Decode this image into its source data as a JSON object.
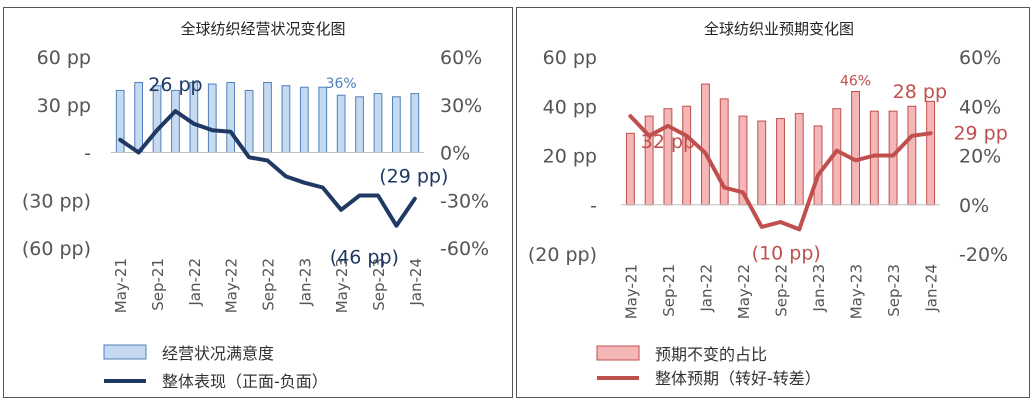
{
  "charts": [
    {
      "id": "left",
      "bar_color": "#c5d9f1",
      "bar_stroke": "#4f81bd",
      "line_color": "#1f3864",
      "chart_data": {
        "type": "bar+line",
        "title": "全球纺织经营状况变化图",
        "categories": [
          "May-21",
          "Jul-21",
          "Sep-21",
          "Nov-21",
          "Jan-22",
          "Mar-22",
          "May-22",
          "Jul-22",
          "Sep-22",
          "Nov-22",
          "Jan-23",
          "Mar-23",
          "May-23",
          "Jul-23",
          "Sep-23",
          "Nov-23",
          "Jan-24"
        ],
        "x_tick_labels": [
          "May-21",
          "Sep-21",
          "Jan-22",
          "May-22",
          "Sep-22",
          "Jan-23",
          "May-23",
          "Sep-23",
          "Jan-24"
        ],
        "left_axis": {
          "ticks": [
            60,
            30,
            0,
            -30,
            -60
          ],
          "tick_labels": [
            "60 pp",
            "30 pp",
            "-",
            "(30 pp)",
            "(60 pp)"
          ],
          "range": [
            -60,
            60
          ]
        },
        "right_axis": {
          "ticks": [
            60,
            30,
            0,
            -30,
            -60
          ],
          "tick_labels": [
            "60%",
            "30%",
            "0%",
            "-30%",
            "-60%"
          ],
          "range": [
            -60,
            60
          ]
        },
        "series": [
          {
            "name": "经营状况满意度",
            "kind": "bar",
            "axis": "right",
            "unit": "%",
            "values": [
              39,
              44,
              42,
              39,
              44,
              43,
              44,
              39,
              44,
              42,
              41,
              41,
              36,
              35,
              37,
              35,
              37
            ]
          },
          {
            "name": "整体表现（正面-负面）",
            "kind": "line",
            "axis": "left",
            "unit": "pp",
            "values": [
              8,
              0,
              14,
              26,
              18,
              14,
              13,
              -3,
              -5,
              -15,
              -19,
              -22,
              -36,
              -27,
              -27,
              -46,
              -29
            ]
          }
        ],
        "annotations": [
          {
            "text": "26 pp",
            "series": 1,
            "index": 3
          },
          {
            "text": "36%",
            "series": 0,
            "index": 12
          },
          {
            "text": "(29 pp)",
            "series": 1,
            "index": 16
          },
          {
            "text": "(46 pp)",
            "series": 1,
            "index": 15
          }
        ],
        "legend": [
          "经营状况满意度",
          "整体表现（正面-负面）"
        ],
        "legend_position": "bottom"
      }
    },
    {
      "id": "right",
      "bar_color": "#f4b6b6",
      "bar_stroke": "#c0504d",
      "line_color": "#c0504d",
      "chart_data": {
        "type": "bar+line",
        "title": "全球纺织业预期变化图",
        "categories": [
          "May-21",
          "Jul-21",
          "Sep-21",
          "Nov-21",
          "Jan-22",
          "Mar-22",
          "May-22",
          "Jul-22",
          "Sep-22",
          "Nov-22",
          "Jan-23",
          "Mar-23",
          "May-23",
          "Jul-23",
          "Sep-23",
          "Nov-23",
          "Jan-24"
        ],
        "x_tick_labels": [
          "May-21",
          "Sep-21",
          "Jan-22",
          "May-22",
          "Sep-22",
          "Jan-23",
          "May-23",
          "Sep-23",
          "Jan-24"
        ],
        "left_axis": {
          "ticks": [
            60,
            40,
            20,
            0,
            -20
          ],
          "tick_labels": [
            "60 pp",
            "40 pp",
            "20 pp",
            "-",
            "(20 pp)"
          ],
          "range": [
            -20,
            60
          ]
        },
        "right_axis": {
          "ticks": [
            60,
            40,
            20,
            0,
            -20
          ],
          "tick_labels": [
            "60%",
            "40%",
            "20%",
            "0%",
            "-20%"
          ],
          "range": [
            -20,
            60
          ]
        },
        "series": [
          {
            "name": "预期不变的占比",
            "kind": "bar",
            "axis": "right",
            "unit": "%",
            "values": [
              29,
              36,
              39,
              40,
              49,
              43,
              36,
              34,
              35,
              37,
              32,
              39,
              46,
              38,
              38,
              40,
              42
            ]
          },
          {
            "name": "整体预期（转好-转差）",
            "kind": "line",
            "axis": "left",
            "unit": "pp",
            "values": [
              36,
              28,
              32,
              28,
              21,
              7,
              5,
              -9,
              -7,
              -10,
              12,
              22,
              18,
              20,
              20,
              28,
              29
            ]
          }
        ],
        "annotations": [
          {
            "text": "32 pp",
            "series": 1,
            "index": 2
          },
          {
            "text": "46%",
            "series": 0,
            "index": 12
          },
          {
            "text": "28 pp",
            "series": 1,
            "index": 15
          },
          {
            "text": "29 pp",
            "series": 1,
            "index": 16
          },
          {
            "text": "(10 pp)",
            "series": 1,
            "index": 9
          }
        ],
        "legend": [
          "预期不变的占比",
          "整体预期（转好-转差）"
        ],
        "legend_position": "bottom"
      }
    }
  ]
}
